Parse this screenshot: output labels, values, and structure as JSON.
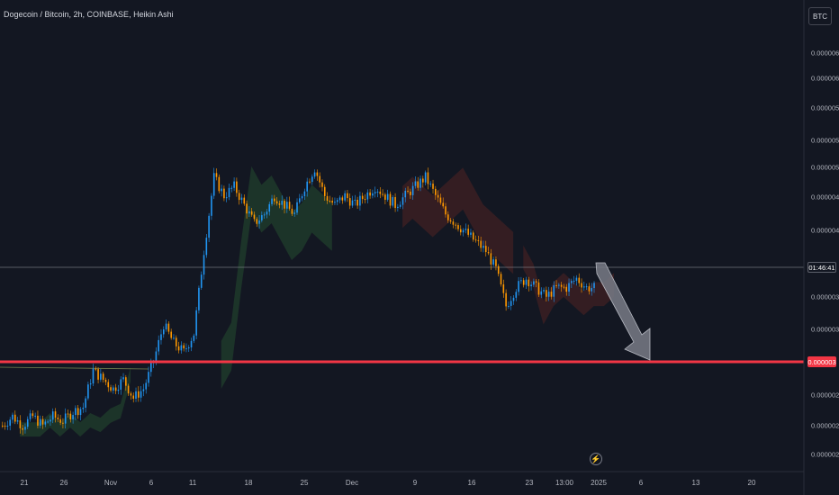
{
  "header": {
    "symbol_title": "Dogecoin / Bitcoin, 2h, COINBASE, Heikin Ashi"
  },
  "scale": {
    "currency_label": "BTC"
  },
  "price_axis": {
    "tick_labels": [
      "0.000006",
      "0.000006",
      "0.000005",
      "0.000005",
      "0.000005",
      "0.000004",
      "0.000004",
      "0.000003",
      "0.000003",
      "0.000002",
      "0.000002",
      "0.000002"
    ],
    "countdown_tag": "01:46:41",
    "level_tag": "0.000003"
  },
  "time_axis": {
    "labels": [
      "21",
      "26",
      "Nov",
      "6",
      "11",
      "18",
      "25",
      "Dec",
      "9",
      "16",
      "23",
      "13:00",
      "2025",
      "6",
      "13",
      "20"
    ]
  },
  "flash_icon": "lightning-icon",
  "colors": {
    "background": "#131722",
    "up": "#2196f3",
    "down": "#ff9800",
    "level_line": "#f23645",
    "arrow": "#b2b5be",
    "cloud_green": "#1e3a2a",
    "cloud_red": "#3b1e22"
  },
  "chart_data": {
    "type": "line",
    "style": "Heikin Ashi candles",
    "series": [
      {
        "values": [
          2.1e-06,
          2.2e-06,
          2.1e-06,
          2.2e-06,
          2.1e-06,
          2.2e-06,
          2.15e-06,
          2.25e-06,
          2.3e-06,
          2.7e-06,
          2.6e-06,
          2.5e-06,
          2.6e-06,
          2.4e-06,
          2.5e-06,
          2.8e-06,
          3.2e-06,
          3e-06,
          2.9e-06,
          3.1e-06,
          4e-06,
          4.8e-06,
          4.6e-06,
          4.7e-06,
          4.5e-06,
          4.3e-06,
          4.4e-06,
          4.6e-06,
          4.5e-06,
          4.4e-06,
          4.7e-06,
          4.9e-06,
          4.6e-06,
          4.5e-06,
          4.6e-06,
          4.5e-06,
          4.6e-06,
          4.7e-06,
          4.6e-06,
          4.5e-06,
          4.6e-06,
          4.7e-06,
          4.8e-06,
          4.6e-06,
          4.4e-06,
          4.3e-06,
          4.2e-06,
          4.1e-06,
          4e-06,
          3.8e-06,
          3.4e-06,
          3.6e-06,
          3.7e-06,
          3.6e-06,
          3.5e-06,
          3.6e-06,
          3.6e-06,
          3.7e-06,
          3.6e-06,
          3.6e-06
        ]
      }
    ],
    "horizontal_level": 3e-06,
    "current_price_line": true,
    "projection": "arrow pointing down from last price to level",
    "grid": false
  }
}
